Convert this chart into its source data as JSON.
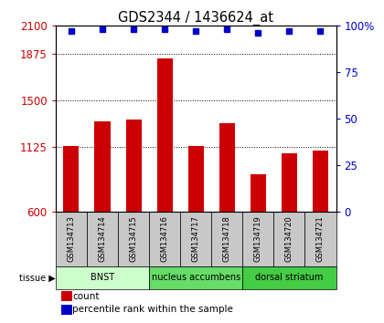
{
  "title": "GDS2344 / 1436624_at",
  "samples": [
    "GSM134713",
    "GSM134714",
    "GSM134715",
    "GSM134716",
    "GSM134717",
    "GSM134718",
    "GSM134719",
    "GSM134720",
    "GSM134721"
  ],
  "counts": [
    1130,
    1330,
    1345,
    1840,
    1130,
    1315,
    900,
    1075,
    1095
  ],
  "percentile_ranks": [
    97,
    98,
    98,
    98,
    97,
    98,
    96,
    97,
    97
  ],
  "ylim_left": [
    600,
    2100
  ],
  "yticks_left": [
    600,
    1125,
    1500,
    1875,
    2100
  ],
  "ylim_right": [
    0,
    100
  ],
  "yticks_right": [
    0,
    25,
    50,
    75,
    100
  ],
  "bar_color": "#cc0000",
  "dot_color": "#0000cc",
  "bar_width": 0.5,
  "tissue_groups": [
    {
      "label": "BNST",
      "indices": [
        0,
        1,
        2
      ],
      "color": "#ccffcc"
    },
    {
      "label": "nucleus accumbens",
      "indices": [
        3,
        4,
        5
      ],
      "color": "#66dd66"
    },
    {
      "label": "dorsal striatum",
      "indices": [
        6,
        7,
        8
      ],
      "color": "#44cc44"
    }
  ],
  "plot_bg": "#ffffff",
  "sample_box_color": "#c8c8c8",
  "grid_color": "#000000",
  "legend_count_label": "count",
  "legend_pct_label": "percentile rank within the sample"
}
